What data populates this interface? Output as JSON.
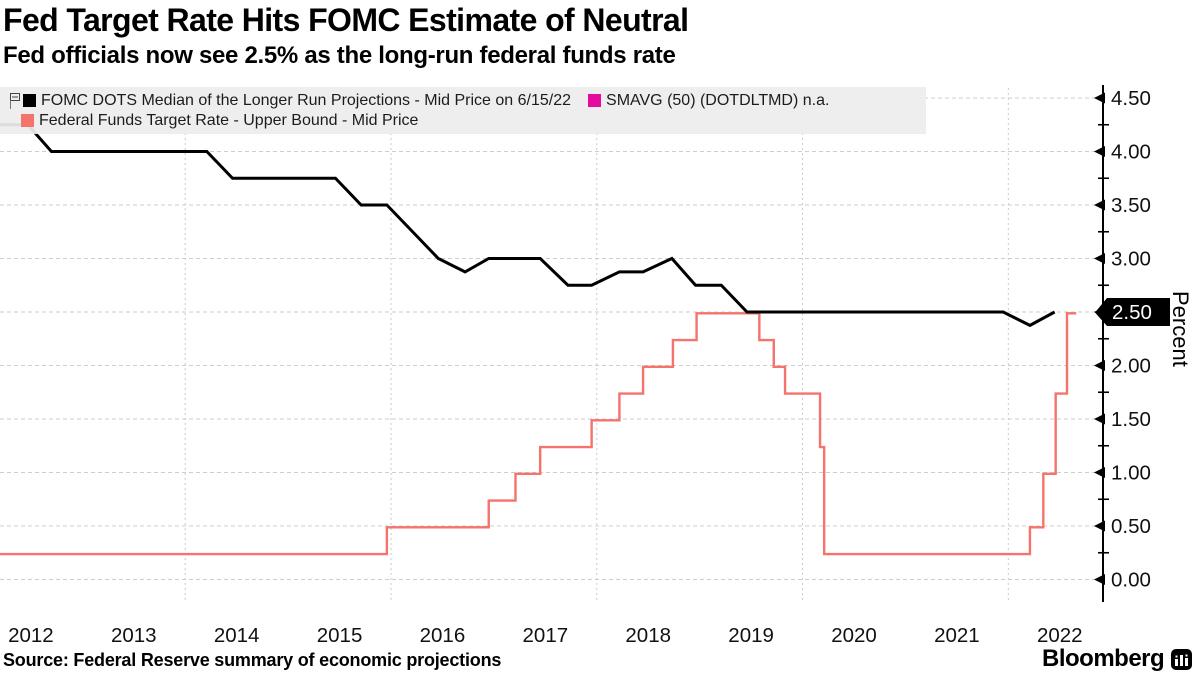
{
  "title": "Fed Target Rate Hits FOMC Estimate of Neutral",
  "subtitle": "Fed officials now see 2.5% as the long-run federal funds rate",
  "source": "Source: Federal Reserve summary of economic projections",
  "brand": {
    "name": "Bloomberg"
  },
  "legend": {
    "row1": [
      {
        "label": "FOMC DOTS Median of the Longer Run Projections - Mid Price on 6/15/22",
        "color": "#000000"
      },
      {
        "label": "SMAVG (50) (DOTDLTMD) n.a.",
        "color": "#e50aa0"
      }
    ],
    "row2": [
      {
        "label": "Federal Funds Target Rate - Upper Bound - Mid Price",
        "color": "#f4736b"
      }
    ]
  },
  "chart_data": {
    "type": "line",
    "title": "Fed Target Rate Hits FOMC Estimate of Neutral",
    "xlabel": "",
    "ylabel": "Percent",
    "xlim": [
      2012.2,
      2022.92
    ],
    "ylim": [
      0.0,
      4.5
    ],
    "grid": "on",
    "legend_position": "top-left",
    "x_year_labels": [
      2012,
      2013,
      2014,
      2015,
      2016,
      2017,
      2018,
      2019,
      2020,
      2021,
      2022
    ],
    "x_gridline_years": [
      2014,
      2016,
      2018,
      2020,
      2022
    ],
    "y_ticks": [
      {
        "v": 0.0,
        "label": "0.00"
      },
      {
        "v": 0.5,
        "label": "0.50"
      },
      {
        "v": 1.0,
        "label": "1.00"
      },
      {
        "v": 1.5,
        "label": "1.50"
      },
      {
        "v": 2.0,
        "label": "2.00"
      },
      {
        "v": 2.5,
        "label": "2.50"
      },
      {
        "v": 3.0,
        "label": "3.00"
      },
      {
        "v": 3.5,
        "label": "3.50"
      },
      {
        "v": 4.0,
        "label": "4.00"
      },
      {
        "v": 4.5,
        "label": "4.50"
      }
    ],
    "y_minor_step": 0.25,
    "last_price": {
      "label": "2.50",
      "value": 2.5
    },
    "series": [
      {
        "name": "Federal Funds Target Rate - Upper Bound - Mid Price",
        "color": "#f4736b",
        "mode": "step",
        "points": [
          [
            2012.2,
            0.25
          ],
          [
            2015.96,
            0.5
          ],
          [
            2016.95,
            0.75
          ],
          [
            2017.21,
            1.0
          ],
          [
            2017.45,
            1.25
          ],
          [
            2017.95,
            1.5
          ],
          [
            2018.22,
            1.75
          ],
          [
            2018.45,
            2.0
          ],
          [
            2018.74,
            2.25
          ],
          [
            2018.97,
            2.5
          ],
          [
            2019.58,
            2.25
          ],
          [
            2019.72,
            2.0
          ],
          [
            2019.83,
            1.75
          ],
          [
            2020.17,
            1.25
          ],
          [
            2020.21,
            0.25
          ],
          [
            2022.21,
            0.5
          ],
          [
            2022.34,
            1.0
          ],
          [
            2022.46,
            1.75
          ],
          [
            2022.57,
            2.5
          ],
          [
            2022.66,
            2.5
          ]
        ]
      },
      {
        "name": "FOMC DOTS Median of the Longer Run Projections - Mid Price on 6/15/22",
        "color": "#000000",
        "mode": "linear",
        "points": [
          [
            2012.2,
            4.25
          ],
          [
            2012.47,
            4.25
          ],
          [
            2012.7,
            4.0
          ],
          [
            2014.21,
            4.0
          ],
          [
            2014.46,
            3.75
          ],
          [
            2015.46,
            3.75
          ],
          [
            2015.71,
            3.5
          ],
          [
            2015.96,
            3.5
          ],
          [
            2016.21,
            3.25
          ],
          [
            2016.46,
            3.0
          ],
          [
            2016.72,
            2.875
          ],
          [
            2016.95,
            3.0
          ],
          [
            2017.45,
            3.0
          ],
          [
            2017.72,
            2.75
          ],
          [
            2017.95,
            2.75
          ],
          [
            2018.22,
            2.875
          ],
          [
            2018.45,
            2.875
          ],
          [
            2018.73,
            3.0
          ],
          [
            2018.96,
            2.75
          ],
          [
            2019.21,
            2.75
          ],
          [
            2019.46,
            2.5
          ],
          [
            2021.95,
            2.5
          ],
          [
            2022.21,
            2.375
          ],
          [
            2022.45,
            2.5
          ]
        ]
      }
    ]
  }
}
